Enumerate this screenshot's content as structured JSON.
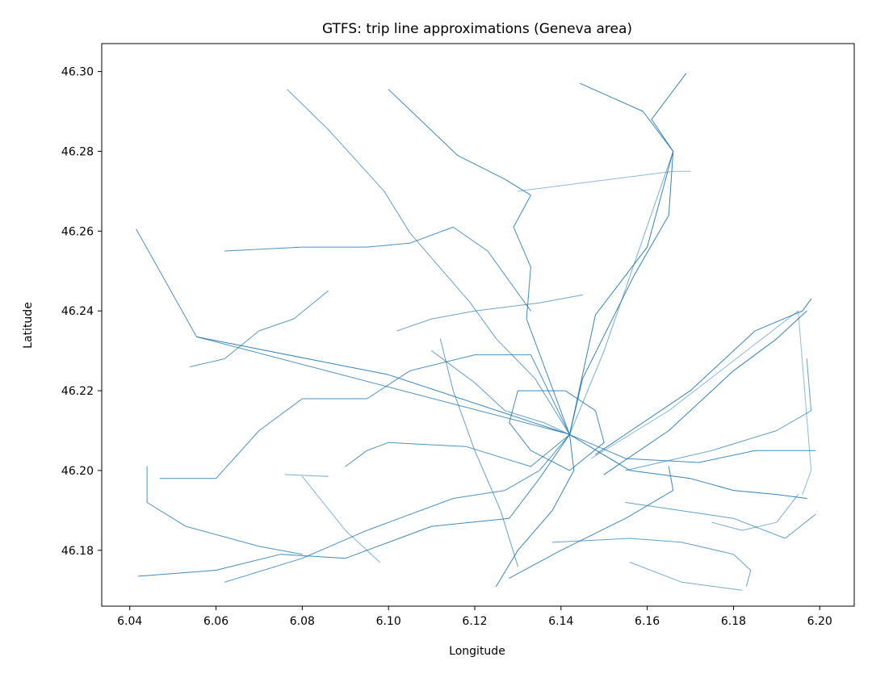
{
  "chart_data": {
    "type": "line",
    "title": "GTFS: trip line approximations (Geneva area)",
    "xlabel": "Longitude",
    "ylabel": "Latitude",
    "xlim": [
      6.0335,
      6.208
    ],
    "ylim": [
      46.166,
      46.307
    ],
    "xticks": [
      "6.04",
      "6.06",
      "6.08",
      "6.10",
      "6.12",
      "6.14",
      "6.16",
      "6.18",
      "6.20"
    ],
    "yticks": [
      "46.18",
      "46.20",
      "46.22",
      "46.24",
      "46.26",
      "46.28",
      "46.30"
    ],
    "grid": false,
    "legend": "none",
    "line_color": "#1f77b4",
    "series": [
      {
        "points": [
          [
            6.0415,
            46.2605
          ],
          [
            6.0555,
            46.2335
          ],
          [
            6.1405,
            46.2095
          ]
        ],
        "opacity": 0.8
      },
      {
        "points": [
          [
            6.0555,
            46.2335
          ],
          [
            6.1,
            46.224
          ],
          [
            6.142,
            46.209
          ]
        ],
        "opacity": 0.9
      },
      {
        "points": [
          [
            6.0765,
            46.2955
          ],
          [
            6.086,
            46.2855
          ],
          [
            6.099,
            46.27
          ],
          [
            6.105,
            46.2595
          ],
          [
            6.119,
            46.242
          ],
          [
            6.125,
            46.233
          ],
          [
            6.134,
            46.223
          ],
          [
            6.142,
            46.209
          ]
        ],
        "opacity": 0.7
      },
      {
        "points": [
          [
            6.1,
            46.2955
          ],
          [
            6.116,
            46.279
          ],
          [
            6.127,
            46.273
          ],
          [
            6.133,
            46.269
          ],
          [
            6.129,
            46.261
          ],
          [
            6.133,
            46.251
          ],
          [
            6.132,
            46.238
          ],
          [
            6.142,
            46.209
          ]
        ],
        "opacity": 0.85
      },
      {
        "points": [
          [
            6.1445,
            46.297
          ],
          [
            6.159,
            46.29
          ],
          [
            6.166,
            46.28
          ],
          [
            6.16,
            46.256
          ],
          [
            6.148,
            46.239
          ],
          [
            6.142,
            46.209
          ]
        ],
        "opacity": 0.9
      },
      {
        "points": [
          [
            6.169,
            46.2995
          ],
          [
            6.161,
            46.288
          ],
          [
            6.166,
            46.28
          ],
          [
            6.165,
            46.264
          ],
          [
            6.157,
            46.249
          ],
          [
            6.145,
            46.223
          ],
          [
            6.142,
            46.209
          ]
        ],
        "opacity": 0.9
      },
      {
        "points": [
          [
            6.13,
            46.27
          ],
          [
            6.166,
            46.275
          ],
          [
            6.17,
            46.275
          ]
        ],
        "opacity": 0.5
      },
      {
        "points": [
          [
            6.166,
            46.28
          ],
          [
            6.15,
            46.23
          ],
          [
            6.142,
            46.209
          ]
        ],
        "opacity": 0.6
      },
      {
        "points": [
          [
            6.062,
            46.255
          ],
          [
            6.08,
            46.256
          ],
          [
            6.095,
            46.256
          ],
          [
            6.105,
            46.257
          ],
          [
            6.115,
            46.261
          ],
          [
            6.123,
            46.255
          ],
          [
            6.133,
            46.24
          ]
        ],
        "opacity": 0.8
      },
      {
        "points": [
          [
            6.047,
            46.198
          ],
          [
            6.06,
            46.198
          ],
          [
            6.07,
            46.21
          ],
          [
            6.08,
            46.218
          ],
          [
            6.095,
            46.218
          ],
          [
            6.105,
            46.225
          ],
          [
            6.12,
            46.229
          ],
          [
            6.133,
            46.229
          ],
          [
            6.142,
            46.209
          ]
        ],
        "opacity": 0.8
      },
      {
        "points": [
          [
            6.042,
            46.1735
          ],
          [
            6.06,
            46.175
          ],
          [
            6.075,
            46.179
          ],
          [
            6.09,
            46.178
          ],
          [
            6.11,
            46.186
          ],
          [
            6.128,
            46.188
          ],
          [
            6.135,
            46.198
          ],
          [
            6.142,
            46.209
          ]
        ],
        "opacity": 0.85
      },
      {
        "points": [
          [
            6.044,
            46.201
          ],
          [
            6.044,
            46.192
          ],
          [
            6.053,
            46.186
          ],
          [
            6.07,
            46.181
          ],
          [
            6.08,
            46.179
          ]
        ],
        "opacity": 0.8
      },
      {
        "points": [
          [
            6.062,
            46.172
          ],
          [
            6.08,
            46.178
          ],
          [
            6.095,
            46.185
          ],
          [
            6.115,
            46.193
          ],
          [
            6.127,
            46.195
          ],
          [
            6.135,
            46.2
          ],
          [
            6.142,
            46.209
          ]
        ],
        "opacity": 0.8
      },
      {
        "points": [
          [
            6.09,
            46.201
          ],
          [
            6.095,
            46.205
          ],
          [
            6.1,
            46.207
          ],
          [
            6.118,
            46.206
          ],
          [
            6.133,
            46.201
          ],
          [
            6.142,
            46.209
          ]
        ],
        "opacity": 0.8
      },
      {
        "points": [
          [
            6.125,
            46.171
          ],
          [
            6.13,
            46.18
          ],
          [
            6.138,
            46.19
          ],
          [
            6.143,
            46.2
          ],
          [
            6.142,
            46.209
          ]
        ],
        "opacity": 0.9
      },
      {
        "points": [
          [
            6.128,
            46.173
          ],
          [
            6.14,
            46.18
          ],
          [
            6.155,
            46.188
          ],
          [
            6.166,
            46.195
          ],
          [
            6.165,
            46.201
          ]
        ],
        "opacity": 0.85
      },
      {
        "points": [
          [
            6.142,
            46.209
          ],
          [
            6.156,
            46.2
          ],
          [
            6.17,
            46.198
          ],
          [
            6.18,
            46.195
          ],
          [
            6.19,
            46.194
          ],
          [
            6.197,
            46.193
          ]
        ],
        "opacity": 0.9
      },
      {
        "points": [
          [
            6.142,
            46.209
          ],
          [
            6.155,
            46.203
          ],
          [
            6.172,
            46.202
          ],
          [
            6.185,
            46.205
          ],
          [
            6.199,
            46.205
          ]
        ],
        "opacity": 0.85
      },
      {
        "points": [
          [
            6.148,
            46.204
          ],
          [
            6.17,
            46.22
          ],
          [
            6.185,
            46.235
          ],
          [
            6.196,
            46.24
          ],
          [
            6.198,
            46.243
          ]
        ],
        "opacity": 0.9
      },
      {
        "points": [
          [
            6.15,
            46.199
          ],
          [
            6.165,
            46.21
          ],
          [
            6.18,
            46.225
          ],
          [
            6.19,
            46.233
          ],
          [
            6.197,
            46.24
          ]
        ],
        "opacity": 0.9
      },
      {
        "points": [
          [
            6.147,
            46.203
          ],
          [
            6.165,
            46.215
          ],
          [
            6.195,
            46.24
          ],
          [
            6.198,
            46.2
          ],
          [
            6.196,
            46.194
          ]
        ],
        "opacity": 0.5
      },
      {
        "points": [
          [
            6.155,
            46.2
          ],
          [
            6.175,
            46.205
          ],
          [
            6.19,
            46.21
          ],
          [
            6.198,
            46.215
          ],
          [
            6.197,
            46.228
          ]
        ],
        "opacity": 0.7
      },
      {
        "points": [
          [
            6.155,
            46.192
          ],
          [
            6.18,
            46.188
          ],
          [
            6.192,
            46.183
          ],
          [
            6.199,
            46.189
          ]
        ],
        "opacity": 0.7
      },
      {
        "points": [
          [
            6.138,
            46.182
          ],
          [
            6.156,
            46.183
          ],
          [
            6.168,
            46.182
          ],
          [
            6.18,
            46.179
          ],
          [
            6.184,
            46.175
          ],
          [
            6.183,
            46.171
          ]
        ],
        "opacity": 0.7
      },
      {
        "points": [
          [
            6.156,
            46.177
          ],
          [
            6.168,
            46.172
          ],
          [
            6.182,
            46.17
          ]
        ],
        "opacity": 0.6
      },
      {
        "points": [
          [
            6.141,
            46.22
          ],
          [
            6.13,
            46.22
          ],
          [
            6.128,
            46.212
          ],
          [
            6.133,
            46.205
          ],
          [
            6.142,
            46.2
          ],
          [
            6.15,
            46.207
          ],
          [
            6.148,
            46.215
          ],
          [
            6.141,
            46.22
          ]
        ],
        "opacity": 0.85
      },
      {
        "points": [
          [
            6.11,
            46.23
          ],
          [
            6.12,
            46.222
          ],
          [
            6.127,
            46.215
          ],
          [
            6.136,
            46.212
          ],
          [
            6.142,
            46.209
          ]
        ],
        "opacity": 0.7
      },
      {
        "points": [
          [
            6.112,
            46.233
          ],
          [
            6.115,
            46.22
          ],
          [
            6.12,
            46.205
          ],
          [
            6.126,
            46.19
          ],
          [
            6.13,
            46.176
          ]
        ],
        "opacity": 0.7
      },
      {
        "points": [
          [
            6.102,
            46.235
          ],
          [
            6.11,
            46.238
          ],
          [
            6.12,
            46.24
          ],
          [
            6.135,
            46.242
          ],
          [
            6.145,
            46.244
          ]
        ],
        "opacity": 0.65
      },
      {
        "points": [
          [
            6.086,
            46.245
          ],
          [
            6.078,
            46.238
          ],
          [
            6.07,
            46.235
          ],
          [
            6.062,
            46.228
          ],
          [
            6.054,
            46.226
          ]
        ],
        "opacity": 0.75
      },
      {
        "points": [
          [
            6.076,
            46.199
          ],
          [
            6.086,
            46.1985
          ]
        ],
        "opacity": 0.6
      },
      {
        "points": [
          [
            6.08,
            46.1985
          ],
          [
            6.09,
            46.185
          ],
          [
            6.098,
            46.177
          ]
        ],
        "opacity": 0.55
      },
      {
        "points": [
          [
            6.195,
            46.194
          ],
          [
            6.19,
            46.187
          ],
          [
            6.182,
            46.185
          ],
          [
            6.175,
            46.187
          ]
        ],
        "opacity": 0.6
      }
    ]
  }
}
